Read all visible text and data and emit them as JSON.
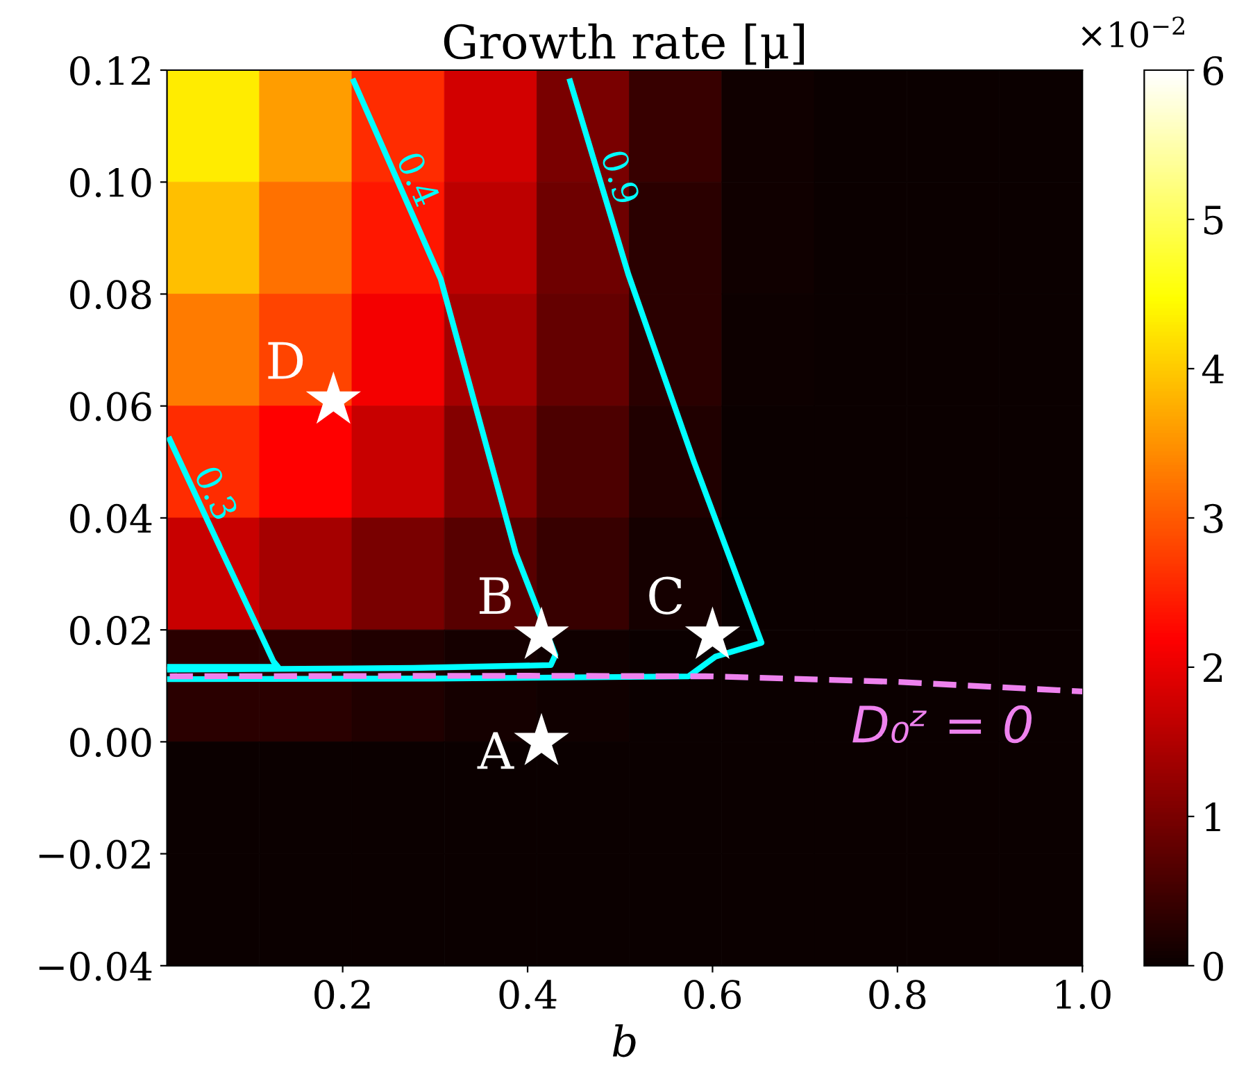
{
  "chart_data": {
    "type": "heatmap",
    "title": "Growth rate [μ]",
    "xlabel": "b",
    "x": [
      0.06,
      0.16,
      0.26,
      0.36,
      0.46,
      0.56,
      0.66,
      0.76,
      0.86,
      0.96
    ],
    "y": [
      0.11,
      0.09,
      0.07,
      0.05,
      0.03,
      0.01,
      -0.01,
      -0.03
    ],
    "cells": [
      [
        4.3,
        3.6,
        2.6,
        1.8,
        1.0,
        0.4,
        0.05,
        0,
        0,
        0
      ],
      [
        3.9,
        3.2,
        2.4,
        1.6,
        0.9,
        0.3,
        0.05,
        0,
        0,
        0
      ],
      [
        3.3,
        2.8,
        2.1,
        1.4,
        0.8,
        0.3,
        0.03,
        0,
        0,
        0
      ],
      [
        2.6,
        2.2,
        1.7,
        1.1,
        0.6,
        0.2,
        0,
        0,
        0,
        0
      ],
      [
        1.7,
        1.4,
        1.0,
        0.7,
        0.4,
        0.1,
        0,
        0,
        0,
        0
      ],
      [
        0.3,
        0.3,
        0.2,
        0.1,
        0.05,
        0,
        0,
        0,
        0,
        0
      ],
      [
        0,
        0,
        0,
        0,
        0,
        0,
        0,
        0,
        0,
        0
      ],
      [
        0,
        0,
        0,
        0,
        0,
        0,
        0,
        0,
        0,
        0
      ]
    ],
    "clim": [
      0,
      6
    ],
    "cticks": [
      0,
      1,
      2,
      3,
      4,
      5,
      6
    ],
    "annotations": [
      "×10$^{−2}$"
    ],
    "xlim": [
      0.01,
      1.0
    ],
    "xticks": [
      {
        "value": 0.2,
        "label": "0.2"
      },
      {
        "value": 0.4,
        "label": "0.4"
      },
      {
        "value": 0.6,
        "label": "0.6"
      },
      {
        "value": 0.8,
        "label": "0.8"
      },
      {
        "value": 1.0,
        "label": "1.0"
      }
    ],
    "ylim": [
      -0.04,
      0.12
    ],
    "yticks": [
      {
        "value": -0.04,
        "label": "−0.04"
      },
      {
        "value": -0.02,
        "label": "−0.02"
      },
      {
        "value": 0,
        "label": "0.00"
      },
      {
        "value": 0.02,
        "label": "0.02"
      },
      {
        "value": 0.04,
        "label": "0.04"
      },
      {
        "value": 0.06,
        "label": "0.06"
      },
      {
        "value": 0.08,
        "label": "0.08"
      },
      {
        "value": 0.1,
        "label": "0.10"
      },
      {
        "value": 0.12,
        "label": "0.12"
      }
    ],
    "grid": false,
    "series": [
      {
        "type": "line",
        "name": "0.3",
        "color": "#00ffff",
        "line_style": "solid",
        "x": [
          0.013,
          0.068,
          0.125,
          0.13,
          0.013
        ],
        "values": [
          0.054,
          0.0345,
          0.0144,
          0.0134,
          0.0134
        ]
      },
      {
        "type": "line",
        "name": "0.4",
        "color": "#00ffff",
        "line_style": "solid",
        "x": [
          0.212,
          0.306,
          0.387,
          0.43,
          0.425,
          0.276,
          0.013
        ],
        "values": [
          0.118,
          0.0827,
          0.0338,
          0.0155,
          0.0137,
          0.0132,
          0.0129
        ]
      },
      {
        "type": "line",
        "name": "0.9",
        "color": "#00ffff",
        "line_style": "solid",
        "x": [
          0.446,
          0.509,
          0.58,
          0.653,
          0.603,
          0.574,
          0.3,
          0.013
        ],
        "values": [
          0.118,
          0.0835,
          0.05,
          0.0177,
          0.0152,
          0.0117,
          0.0113,
          0.0112
        ]
      },
      {
        "type": "line",
        "name": "D₀ᶻ = 0",
        "color": "#ee82ee",
        "line_style": "dashed",
        "x": [
          0.013,
          0.4,
          0.6,
          0.8,
          1.0
        ],
        "values": [
          0.0117,
          0.0118,
          0.0117,
          0.0107,
          0.009
        ]
      },
      {
        "type": "scatter",
        "name": "A",
        "color": "#ffffff",
        "marker": "star",
        "x": [
          0.415
        ],
        "values": [
          0.0
        ]
      },
      {
        "type": "scatter",
        "name": "B",
        "color": "#ffffff",
        "marker": "star",
        "x": [
          0.415
        ],
        "values": [
          0.019
        ]
      },
      {
        "type": "scatter",
        "name": "C",
        "color": "#ffffff",
        "marker": "star",
        "x": [
          0.6
        ],
        "values": [
          0.019
        ]
      },
      {
        "type": "scatter",
        "name": "D",
        "color": "#ffffff",
        "marker": "star",
        "x": [
          0.19
        ],
        "values": [
          0.061
        ]
      }
    ]
  }
}
